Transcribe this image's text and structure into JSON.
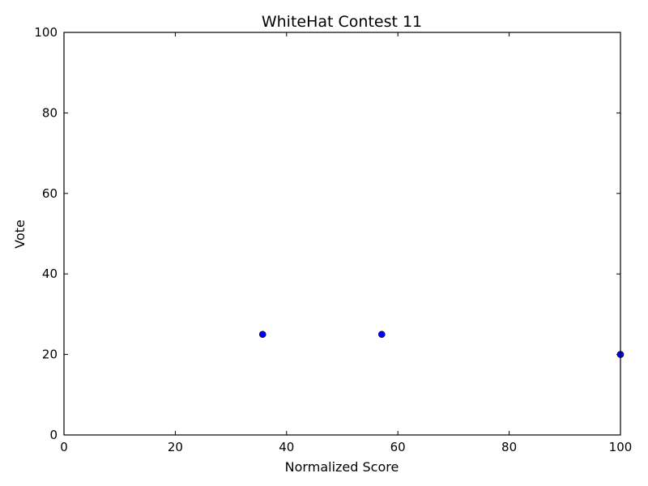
{
  "chart_data": {
    "type": "scatter",
    "title": "WhiteHat Contest 11",
    "xlabel": "Normalized Score",
    "ylabel": "Vote",
    "xlim": [
      0,
      100
    ],
    "ylim": [
      0,
      100
    ],
    "xticks": [
      0,
      20,
      40,
      60,
      80,
      100
    ],
    "yticks": [
      0,
      20,
      40,
      60,
      80,
      100
    ],
    "grid": false,
    "series": [
      {
        "color": "#0000ff",
        "points": [
          {
            "x": 35.7,
            "y": 25
          },
          {
            "x": 57.1,
            "y": 25
          },
          {
            "x": 100,
            "y": 20
          }
        ]
      }
    ]
  }
}
